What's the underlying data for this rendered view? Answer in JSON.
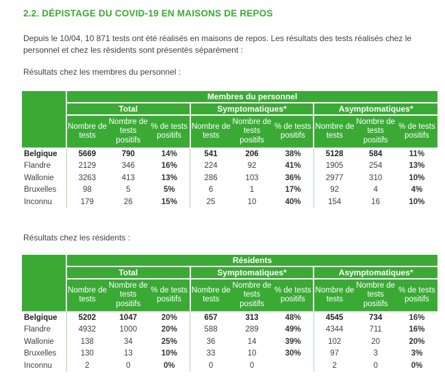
{
  "heading": "2.2. DÉPISTAGE DU COVID-19 EN MAISONS DE REPOS",
  "intro": "Depuis le 10/04,  10 871 tests ont été réalisés en maisons de repos. Les résultats des tests réalisés chez le personnel et chez les résidents sont présentés séparément :",
  "personnel": {
    "caption": "Résultats chez les membres du personnel :",
    "title": "Membres du personnel",
    "groups": [
      "Total",
      "Symptomatiques*",
      "Asymptomatiques*"
    ],
    "subheaders": [
      "Nombre de tests",
      "Nombre de tests positifs",
      "% de tests positifs"
    ],
    "rows": [
      {
        "label": "Belgique",
        "cells": [
          "5669",
          "790",
          "14%",
          "541",
          "206",
          "38%",
          "5128",
          "584",
          "11%"
        ]
      },
      {
        "label": "Flandre",
        "cells": [
          "2129",
          "346",
          "16%",
          "224",
          "92",
          "41%",
          "1905",
          "254",
          "13%"
        ]
      },
      {
        "label": "Wallonie",
        "cells": [
          "3263",
          "413",
          "13%",
          "286",
          "103",
          "36%",
          "2977",
          "310",
          "10%"
        ]
      },
      {
        "label": "Bruxelles",
        "cells": [
          "98",
          "5",
          "5%",
          "6",
          "1",
          "17%",
          "92",
          "4",
          "4%"
        ]
      },
      {
        "label": "Inconnu",
        "cells": [
          "179",
          "26",
          "15%",
          "25",
          "10",
          "40%",
          "154",
          "16",
          "10%"
        ]
      }
    ]
  },
  "residents": {
    "caption": "Résultats chez les résidents :",
    "title": "Résidents",
    "groups": [
      "Total",
      "Symptomatiques*",
      "Asymptomatiques*"
    ],
    "subheaders": [
      "Nombre de tests",
      "Nombre de tests positifs",
      "% de tests positifs"
    ],
    "rows": [
      {
        "label": "Belgique",
        "cells": [
          "5202",
          "1047",
          "20%",
          "657",
          "313",
          "48%",
          "4545",
          "734",
          "16%"
        ]
      },
      {
        "label": "Flandre",
        "cells": [
          "4932",
          "1000",
          "20%",
          "588",
          "289",
          "49%",
          "4344",
          "711",
          "16%"
        ]
      },
      {
        "label": "Wallonie",
        "cells": [
          "138",
          "34",
          "25%",
          "36",
          "14",
          "39%",
          "102",
          "20",
          "20%"
        ]
      },
      {
        "label": "Bruxelles",
        "cells": [
          "130",
          "13",
          "10%",
          "33",
          "10",
          "30%",
          "97",
          "3",
          "3%"
        ]
      },
      {
        "label": "Inconnu",
        "cells": [
          "2",
          "0",
          "0%",
          "0",
          "0",
          "",
          "2",
          "0",
          "0%"
        ]
      }
    ]
  }
}
